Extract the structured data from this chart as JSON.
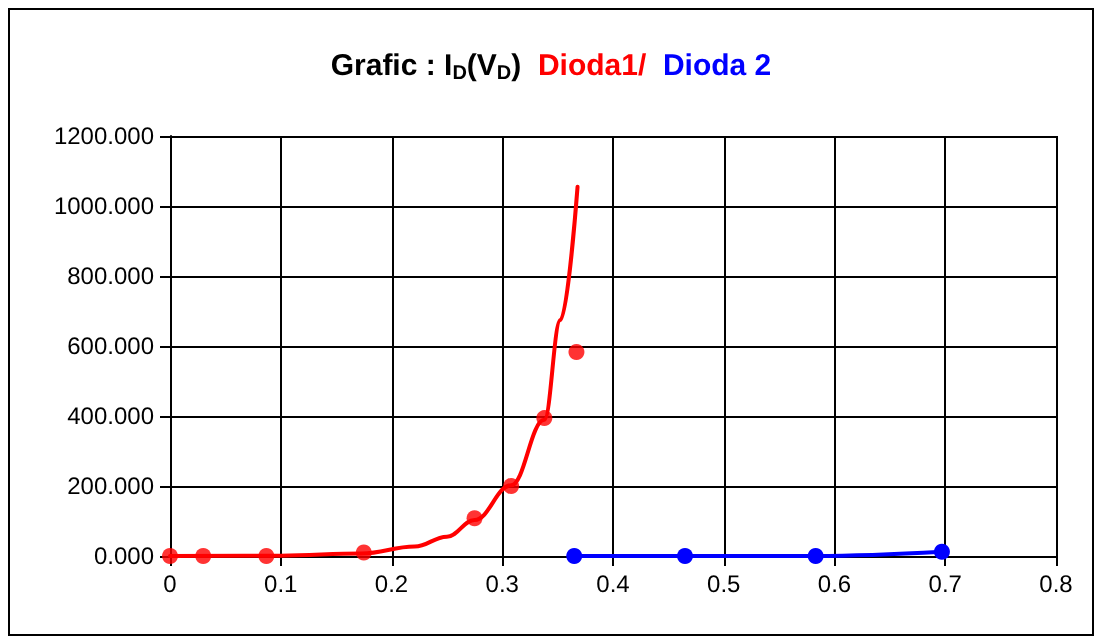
{
  "chart_data": {
    "type": "scatter",
    "title": "Grafic : I$_{D}$(V$_{D}$)",
    "xlim": [
      0,
      0.8
    ],
    "xticks": [
      0,
      0.1,
      0.2,
      0.3,
      0.4,
      0.5,
      0.6,
      0.7,
      0.8
    ],
    "ylim": [
      0,
      1200
    ],
    "yticks": [
      {
        "value": 0,
        "label": "0.000"
      },
      {
        "value": 200,
        "label": "200.000"
      },
      {
        "value": 400,
        "label": "400.000"
      },
      {
        "value": 600,
        "label": "600.000"
      },
      {
        "value": 800,
        "label": "800.000"
      },
      {
        "value": 1000,
        "label": "1000.000"
      },
      {
        "value": 1200,
        "label": "1200.000"
      }
    ],
    "grid": true,
    "legend": false,
    "series": [
      {
        "name": "Dioda1/",
        "color": "#ff0000",
        "marker": "circle",
        "x": [
          0,
          0.03,
          0.087,
          0.175,
          0.275,
          0.308,
          0.338,
          0.367
        ],
        "values": [
          0,
          0,
          0,
          10,
          108,
          200,
          394,
          583
        ]
      },
      {
        "type": "line",
        "color": "#ff0000",
        "marker": "none",
        "line_style": "solid",
        "x": [
          0,
          0.1,
          0.173,
          0.221,
          0.25,
          0.275,
          0.308,
          0.338,
          0.3525,
          0.368
        ],
        "values": [
          0,
          1,
          7,
          27,
          55,
          103,
          202,
          389,
          674,
          1055
        ]
      },
      {
        "name": "Dioda 2",
        "type": "line",
        "color": "#0000ff",
        "marker": "circle",
        "line_style": "solid",
        "x": [
          0.365,
          0.465,
          0.583,
          0.697
        ],
        "values": [
          0,
          0,
          0,
          12
        ]
      }
    ]
  }
}
